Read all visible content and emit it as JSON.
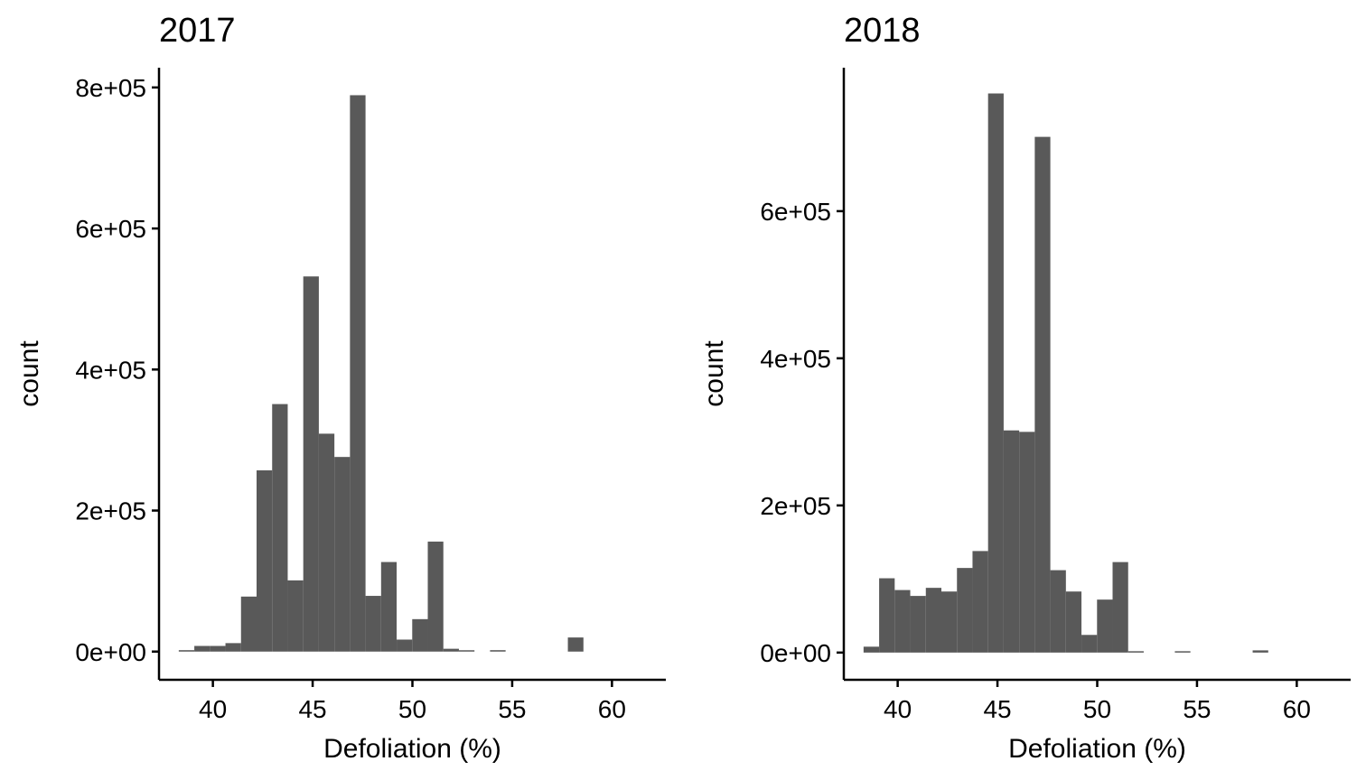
{
  "chart_data": [
    {
      "type": "bar",
      "title": "2017",
      "xlabel": "Defoliation (%)",
      "ylabel": "count",
      "xlim": [
        37.3,
        62.7
      ],
      "ylim": [
        -40000,
        828000
      ],
      "xticks": [
        40,
        45,
        50,
        55,
        60
      ],
      "yticks": [
        0,
        200000,
        400000,
        600000,
        800000
      ],
      "ytick_labels": [
        "0e+00",
        "2e+05",
        "4e+05",
        "6e+05",
        "8e+05"
      ],
      "bin_width": 0.78,
      "bin_centers": [
        38.68,
        39.46,
        40.24,
        41.02,
        41.8,
        42.58,
        43.36,
        44.14,
        44.92,
        45.7,
        46.48,
        47.26,
        48.04,
        48.82,
        49.6,
        50.38,
        51.16,
        51.94,
        52.72,
        53.5,
        54.28,
        55.06,
        55.84,
        56.62,
        57.4,
        58.18
      ],
      "values": [
        2000,
        8000,
        8000,
        12000,
        78000,
        257000,
        351000,
        101000,
        532000,
        309000,
        276000,
        789000,
        79000,
        127000,
        17000,
        46000,
        156000,
        4000,
        1000,
        0,
        2000,
        0,
        0,
        0,
        0,
        20000
      ]
    },
    {
      "type": "bar",
      "title": "2018",
      "xlabel": "Defoliation (%)",
      "ylabel": "count",
      "xlim": [
        37.3,
        62.7
      ],
      "ylim": [
        -37000,
        795000
      ],
      "xticks": [
        40,
        45,
        50,
        55,
        60
      ],
      "yticks": [
        0,
        200000,
        400000,
        600000
      ],
      "ytick_labels": [
        "0e+00",
        "2e+05",
        "4e+05",
        "6e+05"
      ],
      "bin_width": 0.78,
      "bin_centers": [
        38.68,
        39.46,
        40.24,
        41.02,
        41.8,
        42.58,
        43.36,
        44.14,
        44.92,
        45.7,
        46.48,
        47.26,
        48.04,
        48.82,
        49.6,
        50.38,
        51.16,
        51.94,
        52.72,
        53.5,
        54.28,
        55.06,
        55.84,
        56.62,
        57.4,
        58.18
      ],
      "values": [
        8000,
        101000,
        85000,
        77000,
        88000,
        83000,
        115000,
        138000,
        760000,
        302000,
        300000,
        701000,
        112000,
        83000,
        24000,
        72000,
        123000,
        1000,
        0,
        0,
        1000,
        0,
        0,
        0,
        0,
        3000
      ]
    }
  ]
}
